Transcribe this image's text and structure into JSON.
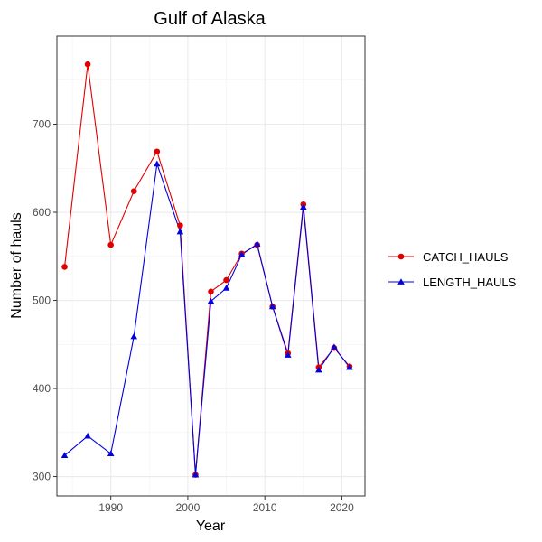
{
  "chart_data": {
    "type": "line",
    "title": "Gulf of Alaska",
    "xlabel": "Year",
    "ylabel": "Number of hauls",
    "xlim": [
      1983,
      2023
    ],
    "ylim": [
      278,
      800
    ],
    "x_ticks": [
      1990,
      2000,
      2010,
      2020
    ],
    "y_ticks": [
      300,
      400,
      500,
      600,
      700
    ],
    "grid": true,
    "legend_position": "right",
    "series": [
      {
        "name": "CATCH_HAULS",
        "color": "#e00000",
        "marker": "circle",
        "x": [
          1984,
          1987,
          1990,
          1993,
          1996,
          1999,
          2001,
          2003,
          2005,
          2007,
          2009,
          2011,
          2013,
          2015,
          2017,
          2019,
          2021
        ],
        "y": [
          538,
          768,
          563,
          624,
          669,
          585,
          302,
          510,
          523,
          553,
          563,
          493,
          440,
          609,
          424,
          446,
          425
        ]
      },
      {
        "name": "LENGTH_HAULS",
        "color": "#0000e0",
        "marker": "triangle",
        "x": [
          1984,
          1987,
          1990,
          1993,
          1996,
          1999,
          2001,
          2003,
          2005,
          2007,
          2009,
          2011,
          2013,
          2015,
          2017,
          2019,
          2021
        ],
        "y": [
          324,
          346,
          326,
          459,
          655,
          578,
          302,
          499,
          514,
          552,
          564,
          493,
          438,
          606,
          421,
          447,
          424
        ]
      }
    ]
  }
}
